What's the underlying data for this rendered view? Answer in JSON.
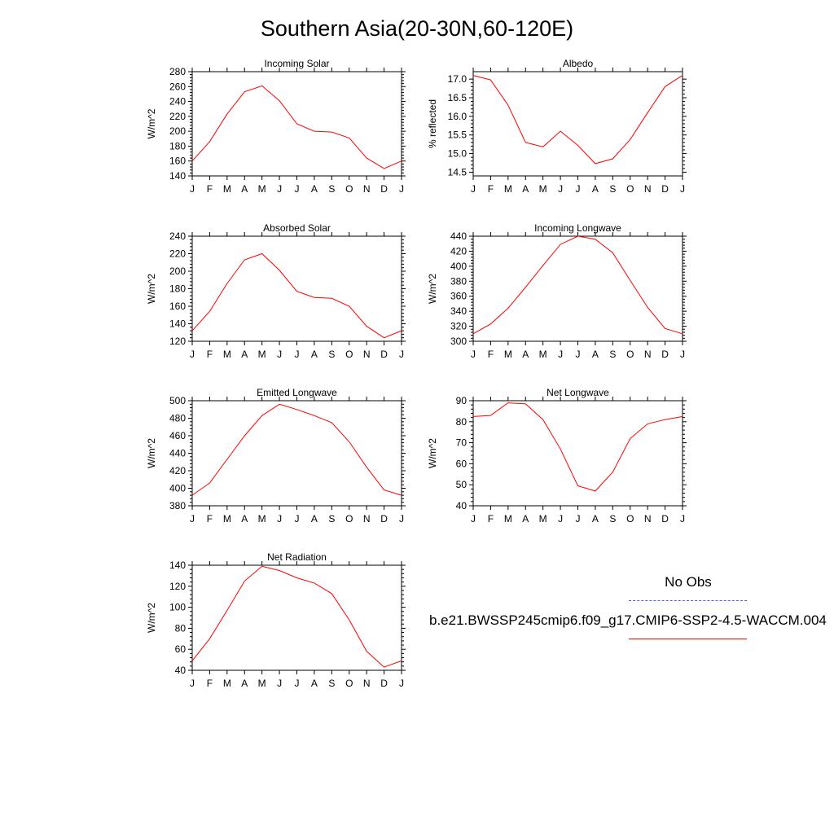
{
  "title": "Southern Asia(20-30N,60-120E)",
  "legend": {
    "obs_label": "No Obs",
    "obs_color": "#5555ff",
    "run_label": "b.e21.BWSSP245cmip6.f09_g17.CMIP6-SSP2-4.5-WACCM.004",
    "run_color": "#ff0000"
  },
  "chart_data": [
    {
      "type": "line",
      "title": "Incoming Solar",
      "ylabel": "W/m^2",
      "x": [
        "J",
        "F",
        "M",
        "A",
        "M",
        "J",
        "J",
        "A",
        "S",
        "O",
        "N",
        "D",
        "J"
      ],
      "ylim": [
        140,
        280
      ],
      "yticks": [
        140,
        160,
        180,
        200,
        220,
        240,
        260,
        280
      ],
      "series": [
        {
          "values": [
            160,
            186,
            223,
            253,
            261,
            241,
            210,
            200,
            199,
            191,
            164,
            150,
            160
          ]
        }
      ]
    },
    {
      "type": "line",
      "title": "Albedo",
      "ylabel": "% reflected",
      "x": [
        "J",
        "F",
        "M",
        "A",
        "M",
        "J",
        "J",
        "A",
        "S",
        "O",
        "N",
        "D",
        "J"
      ],
      "ylim": [
        14.4,
        17.2
      ],
      "yticks": [
        14.5,
        15.0,
        15.5,
        16.0,
        16.5,
        17.0
      ],
      "yticklabels": [
        "14.5",
        "15.0",
        "15.5",
        "16.0",
        "16.5",
        "17.0"
      ],
      "series": [
        {
          "values": [
            17.1,
            16.98,
            16.3,
            15.3,
            15.18,
            15.6,
            15.22,
            14.73,
            14.86,
            15.38,
            16.1,
            16.8,
            17.1
          ]
        }
      ]
    },
    {
      "type": "line",
      "title": "Absorbed Solar",
      "ylabel": "W/m^2",
      "x": [
        "J",
        "F",
        "M",
        "A",
        "M",
        "J",
        "J",
        "A",
        "S",
        "O",
        "N",
        "D",
        "J"
      ],
      "ylim": [
        120,
        240
      ],
      "yticks": [
        120,
        140,
        160,
        180,
        200,
        220,
        240
      ],
      "series": [
        {
          "values": [
            132,
            154,
            186,
            213,
            220,
            201,
            177,
            170,
            169,
            160,
            137,
            124,
            132
          ]
        }
      ]
    },
    {
      "type": "line",
      "title": "Incoming Longwave",
      "ylabel": "W/m^2",
      "x": [
        "J",
        "F",
        "M",
        "A",
        "M",
        "J",
        "J",
        "A",
        "S",
        "O",
        "N",
        "D",
        "J"
      ],
      "ylim": [
        300,
        440
      ],
      "yticks": [
        300,
        320,
        340,
        360,
        380,
        400,
        420,
        440
      ],
      "series": [
        {
          "values": [
            310,
            323,
            344,
            372,
            401,
            429,
            440,
            436,
            418,
            381,
            345,
            317,
            310
          ]
        }
      ]
    },
    {
      "type": "line",
      "title": "Emitted Longwave",
      "ylabel": "W/m^2",
      "x": [
        "J",
        "F",
        "M",
        "A",
        "M",
        "J",
        "J",
        "A",
        "S",
        "O",
        "N",
        "D",
        "J"
      ],
      "ylim": [
        380,
        500
      ],
      "yticks": [
        380,
        400,
        420,
        440,
        460,
        480,
        500
      ],
      "series": [
        {
          "values": [
            392,
            406,
            433,
            460,
            483,
            496,
            490,
            483,
            475,
            453,
            424,
            398,
            392
          ]
        }
      ]
    },
    {
      "type": "line",
      "title": "Net Longwave",
      "ylabel": "W/m^2",
      "x": [
        "J",
        "F",
        "M",
        "A",
        "M",
        "J",
        "J",
        "A",
        "S",
        "O",
        "N",
        "D",
        "J"
      ],
      "ylim": [
        40,
        90
      ],
      "yticks": [
        40,
        50,
        60,
        70,
        80,
        90
      ],
      "series": [
        {
          "values": [
            82.5,
            83,
            89,
            88.5,
            81,
            67,
            49.5,
            47,
            56,
            72,
            79,
            81,
            82.5
          ]
        }
      ]
    },
    {
      "type": "line",
      "title": "Net Radiation",
      "ylabel": "W/m^2",
      "x": [
        "J",
        "F",
        "M",
        "A",
        "M",
        "J",
        "J",
        "A",
        "S",
        "O",
        "N",
        "D",
        "J"
      ],
      "ylim": [
        40,
        140
      ],
      "yticks": [
        40,
        60,
        80,
        100,
        120,
        140
      ],
      "series": [
        {
          "values": [
            49,
            70,
            97,
            125,
            139,
            135,
            128,
            123,
            113,
            88,
            58,
            43,
            49
          ]
        }
      ]
    }
  ]
}
